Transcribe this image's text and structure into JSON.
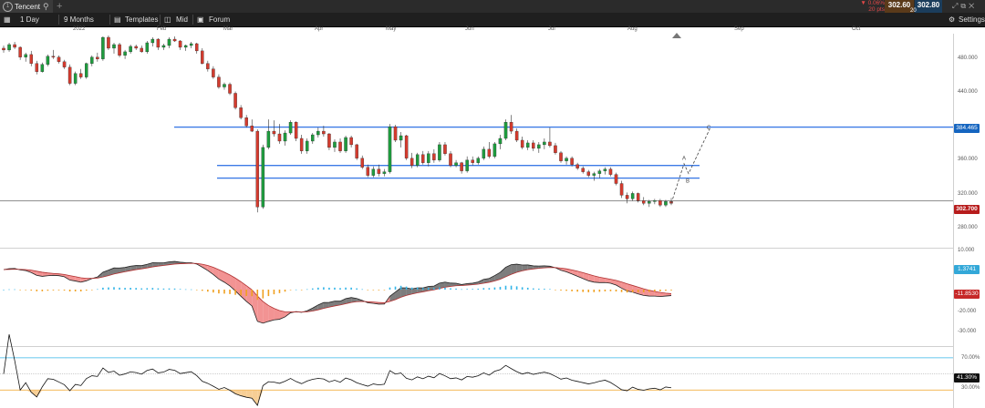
{
  "window": {
    "tab_title": "Tencent",
    "new_tab": "+",
    "search_icon": "search-icon",
    "tab_icon": "1"
  },
  "quote": {
    "change_pct": "▼ 0.06%",
    "change_pts": "20 pts",
    "bid": "302.60",
    "ask": "302.80",
    "spread": "20"
  },
  "toolbar": {
    "interval": "1 Day",
    "range": "9 Months",
    "templates": "Templates",
    "price_type": "Mid",
    "forum": "Forum",
    "settings": "Settings"
  },
  "colors": {
    "up": "#1e9c3e",
    "down": "#d43b2e",
    "hline": "#3d7be6",
    "macd_pos": "#33b5e8",
    "macd_neg": "#f0a020",
    "rsi_upper": "#33b5e8",
    "rsi_lower": "#f0a020",
    "tag_blue": "#1565c0",
    "tag_red": "#c62828"
  },
  "chart_data": [
    {
      "type": "candlestick",
      "x_labels": [
        "2022",
        "Feb",
        "Mar",
        "Apr",
        "May",
        "Jun",
        "Jul",
        "Aug",
        "Sep",
        "Oct"
      ],
      "y_ticks": [
        "480.000",
        "440.000",
        "400.000",
        "360.000",
        "320.000",
        "280.000"
      ],
      "ylim": [
        268,
        480
      ],
      "last_price": "302.700",
      "level_tag": "384.465",
      "horizontal_lines": [
        384.5,
        342,
        328
      ],
      "wave_labels": [
        "A",
        "B",
        "C"
      ],
      "candles": [
        [
          472,
          475,
          467,
          470
        ],
        [
          470,
          478,
          468,
          476
        ],
        [
          476,
          479,
          471,
          473
        ],
        [
          473,
          474,
          459,
          462
        ],
        [
          462,
          467,
          457,
          465
        ],
        [
          465,
          469,
          452,
          455
        ],
        [
          455,
          458,
          443,
          446
        ],
        [
          446,
          456,
          445,
          454
        ],
        [
          454,
          465,
          452,
          463
        ],
        [
          463,
          470,
          460,
          462
        ],
        [
          462,
          464,
          455,
          457
        ],
        [
          457,
          459,
          449,
          451
        ],
        [
          451,
          454,
          431,
          433
        ],
        [
          433,
          446,
          431,
          444
        ],
        [
          444,
          449,
          438,
          440
        ],
        [
          440,
          456,
          438,
          455
        ],
        [
          455,
          464,
          452,
          462
        ],
        [
          462,
          467,
          457,
          460
        ],
        [
          460,
          485,
          458,
          484
        ],
        [
          484,
          486,
          470,
          472
        ],
        [
          472,
          478,
          466,
          476
        ],
        [
          476,
          478,
          462,
          464
        ],
        [
          464,
          470,
          460,
          468
        ],
        [
          468,
          476,
          466,
          474
        ],
        [
          474,
          476,
          470,
          472
        ],
        [
          472,
          475,
          467,
          468
        ],
        [
          468,
          480,
          466,
          478
        ],
        [
          478,
          484,
          474,
          482
        ],
        [
          482,
          483,
          470,
          473
        ],
        [
          473,
          477,
          470,
          475
        ],
        [
          475,
          484,
          472,
          482
        ],
        [
          482,
          485,
          479,
          480
        ],
        [
          480,
          481,
          470,
          473
        ],
        [
          473,
          476,
          469,
          475
        ],
        [
          475,
          479,
          472,
          477
        ],
        [
          477,
          478,
          466,
          469
        ],
        [
          469,
          472,
          454,
          455
        ],
        [
          455,
          458,
          446,
          449
        ],
        [
          449,
          452,
          438,
          440
        ],
        [
          440,
          443,
          427,
          429
        ],
        [
          429,
          434,
          426,
          432
        ],
        [
          432,
          434,
          420,
          422
        ],
        [
          422,
          424,
          404,
          406
        ],
        [
          406,
          409,
          393,
          395
        ],
        [
          395,
          398,
          384,
          386
        ],
        [
          386,
          393,
          379,
          380
        ],
        [
          380,
          382,
          290,
          296
        ],
        [
          296,
          365,
          294,
          362
        ],
        [
          362,
          393,
          360,
          380
        ],
        [
          380,
          392,
          374,
          377
        ],
        [
          377,
          388,
          366,
          369
        ],
        [
          369,
          381,
          364,
          378
        ],
        [
          378,
          392,
          376,
          390
        ],
        [
          390,
          391,
          369,
          372
        ],
        [
          372,
          376,
          355,
          358
        ],
        [
          358,
          372,
          355,
          369
        ],
        [
          369,
          378,
          366,
          376
        ],
        [
          376,
          384,
          373,
          380
        ],
        [
          380,
          386,
          374,
          377
        ],
        [
          377,
          378,
          359,
          362
        ],
        [
          362,
          371,
          357,
          368
        ],
        [
          368,
          372,
          356,
          358
        ],
        [
          358,
          375,
          356,
          373
        ],
        [
          373,
          375,
          362,
          365
        ],
        [
          365,
          366,
          348,
          350
        ],
        [
          350,
          353,
          338,
          340
        ],
        [
          340,
          343,
          329,
          331
        ],
        [
          331,
          341,
          329,
          338
        ],
        [
          338,
          343,
          330,
          333
        ],
        [
          333,
          338,
          330,
          335
        ],
        [
          335,
          388,
          333,
          385
        ],
        [
          385,
          387,
          368,
          370
        ],
        [
          370,
          379,
          362,
          375
        ],
        [
          375,
          376,
          348,
          350
        ],
        [
          350,
          356,
          339,
          342
        ],
        [
          342,
          356,
          340,
          354
        ],
        [
          354,
          358,
          343,
          345
        ],
        [
          345,
          358,
          341,
          355
        ],
        [
          355,
          360,
          345,
          348
        ],
        [
          348,
          368,
          346,
          365
        ],
        [
          365,
          368,
          353,
          355
        ],
        [
          355,
          358,
          340,
          342
        ],
        [
          342,
          348,
          340,
          345
        ],
        [
          345,
          346,
          333,
          336
        ],
        [
          336,
          352,
          334,
          348
        ],
        [
          348,
          352,
          342,
          345
        ],
        [
          345,
          352,
          343,
          350
        ],
        [
          350,
          363,
          348,
          360
        ],
        [
          360,
          368,
          350,
          352
        ],
        [
          352,
          368,
          350,
          366
        ],
        [
          366,
          376,
          360,
          372
        ],
        [
          372,
          393,
          370,
          390
        ],
        [
          390,
          398,
          377,
          380
        ],
        [
          380,
          383,
          368,
          370
        ],
        [
          370,
          374,
          360,
          362
        ],
        [
          362,
          370,
          359,
          367
        ],
        [
          367,
          370,
          358,
          361
        ],
        [
          361,
          368,
          356,
          365
        ],
        [
          365,
          372,
          360,
          368
        ],
        [
          368,
          384,
          362,
          364
        ],
        [
          364,
          367,
          354,
          356
        ],
        [
          356,
          358,
          345,
          347
        ],
        [
          347,
          352,
          343,
          350
        ],
        [
          350,
          352,
          341,
          343
        ],
        [
          343,
          345,
          337,
          339
        ],
        [
          339,
          341,
          333,
          335
        ],
        [
          335,
          337,
          329,
          331
        ],
        [
          331,
          335,
          325,
          333
        ],
        [
          333,
          338,
          328,
          336
        ],
        [
          336,
          340,
          332,
          338
        ],
        [
          338,
          340,
          330,
          332
        ],
        [
          332,
          334,
          320,
          322
        ],
        [
          322,
          325,
          306,
          309
        ],
        [
          309,
          312,
          300,
          305
        ],
        [
          305,
          313,
          303,
          311
        ],
        [
          311,
          312,
          301,
          303
        ],
        [
          303,
          307,
          298,
          300
        ],
        [
          300,
          304,
          296,
          302
        ],
        [
          302,
          305,
          299,
          303
        ],
        [
          303,
          305,
          296,
          298
        ],
        [
          298,
          304,
          296,
          302
        ],
        [
          302,
          306,
          298,
          300
        ]
      ]
    },
    {
      "type": "macd",
      "y_ticks": [
        "10.000",
        "-20.000",
        "-30.000"
      ],
      "ylim": [
        -38,
        10
      ],
      "histogram_tag": "1.3741",
      "signal_tag": "-11.8530"
    },
    {
      "type": "rsi",
      "y_ticks": [
        "70.00%",
        "30.00%"
      ],
      "upper_level": 70,
      "lower_level": 30,
      "ylim": [
        10,
        80
      ],
      "rsi_tag": "41.30%"
    }
  ]
}
